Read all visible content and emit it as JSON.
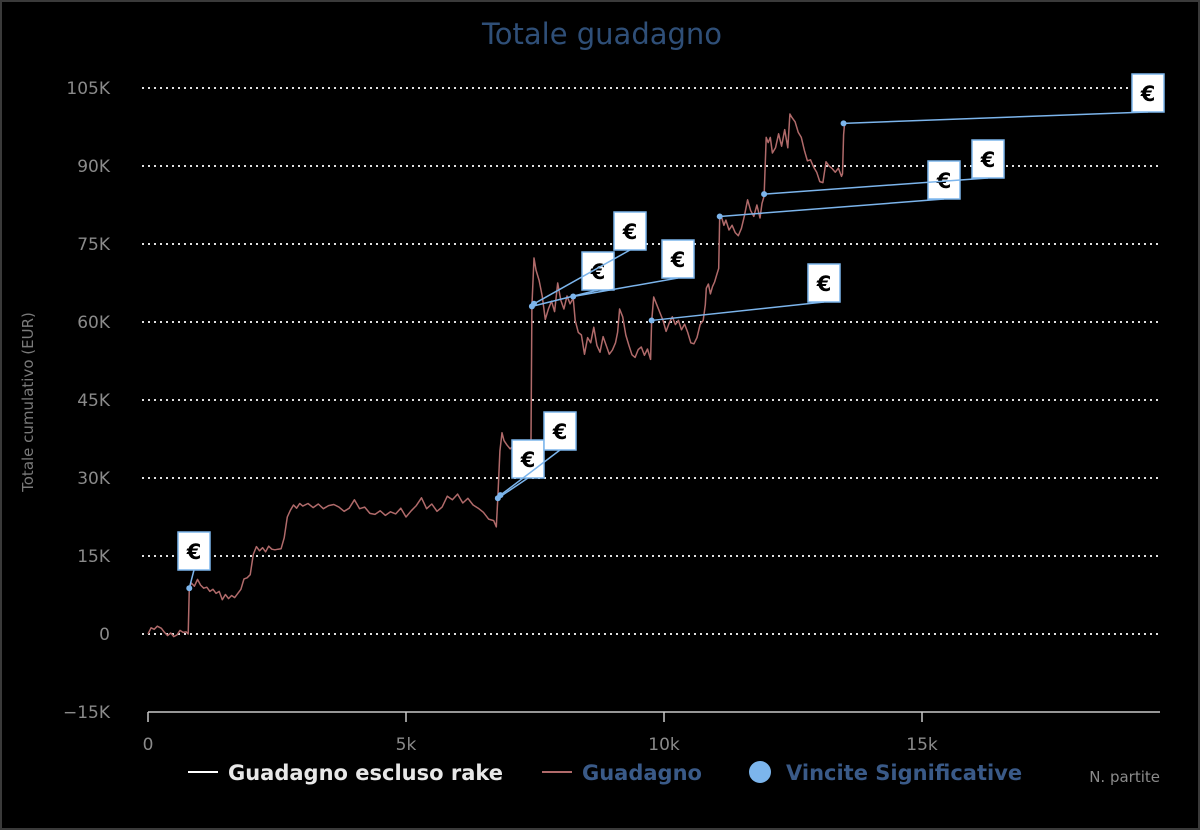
{
  "chart_data": {
    "type": "line",
    "title": "Totale guadagno",
    "ylabel": "Totale cumulativo (EUR)",
    "xlabel": "N. partite",
    "xlim": [
      0,
      19700
    ],
    "ylim": [
      -15000,
      105000
    ],
    "y_ticks": [
      {
        "value": -15000,
        "label": "−15K"
      },
      {
        "value": 0,
        "label": "0"
      },
      {
        "value": 15000,
        "label": "15K"
      },
      {
        "value": 30000,
        "label": "30K"
      },
      {
        "value": 45000,
        "label": "45K"
      },
      {
        "value": 60000,
        "label": "60K"
      },
      {
        "value": 75000,
        "label": "75K"
      },
      {
        "value": 90000,
        "label": "90K"
      },
      {
        "value": 105000,
        "label": "105K"
      }
    ],
    "x_ticks": [
      {
        "value": 0,
        "label": "0"
      },
      {
        "value": 5000,
        "label": "5k"
      },
      {
        "value": 10000,
        "label": "10k"
      },
      {
        "value": 15000,
        "label": "15k"
      }
    ],
    "grid": "horizontal-dotted",
    "legend_position": "bottom",
    "legend": [
      {
        "name": "Guadagno escluso rake",
        "color": "#ffffff",
        "text_color": "#e8e8e8",
        "marker": "line"
      },
      {
        "name": "Guadagno",
        "color": "#b06a6a",
        "text_color": "#3a5a88",
        "marker": "line"
      },
      {
        "name": "Vincite Significative",
        "color": "#7cb5ec",
        "text_color": "#3a5a88",
        "marker": "circle"
      }
    ],
    "series": [
      {
        "name": "Guadagno",
        "color": "#b06a6a",
        "points": [
          [
            0,
            0
          ],
          [
            60,
            1200
          ],
          [
            120,
            900
          ],
          [
            180,
            1500
          ],
          [
            260,
            1100
          ],
          [
            320,
            300
          ],
          [
            380,
            -300
          ],
          [
            440,
            200
          ],
          [
            500,
            -500
          ],
          [
            560,
            -200
          ],
          [
            620,
            700
          ],
          [
            680,
            300
          ],
          [
            740,
            400
          ],
          [
            780,
            0
          ],
          [
            800,
            8800
          ],
          [
            840,
            9800
          ],
          [
            900,
            9200
          ],
          [
            960,
            10500
          ],
          [
            1020,
            9400
          ],
          [
            1080,
            8800
          ],
          [
            1140,
            9000
          ],
          [
            1200,
            8200
          ],
          [
            1260,
            8600
          ],
          [
            1320,
            7800
          ],
          [
            1380,
            8200
          ],
          [
            1440,
            6600
          ],
          [
            1500,
            7600
          ],
          [
            1560,
            6800
          ],
          [
            1620,
            7400
          ],
          [
            1680,
            7000
          ],
          [
            1740,
            7800
          ],
          [
            1800,
            8600
          ],
          [
            1860,
            10600
          ],
          [
            1920,
            10800
          ],
          [
            1980,
            11400
          ],
          [
            2040,
            15300
          ],
          [
            2100,
            16800
          ],
          [
            2160,
            16000
          ],
          [
            2220,
            16600
          ],
          [
            2280,
            15800
          ],
          [
            2340,
            16900
          ],
          [
            2400,
            16300
          ],
          [
            2460,
            16200
          ],
          [
            2520,
            16300
          ],
          [
            2580,
            16400
          ],
          [
            2640,
            18500
          ],
          [
            2700,
            22500
          ],
          [
            2760,
            23800
          ],
          [
            2820,
            24800
          ],
          [
            2880,
            24200
          ],
          [
            2940,
            25100
          ],
          [
            3000,
            24600
          ],
          [
            3100,
            25100
          ],
          [
            3200,
            24300
          ],
          [
            3300,
            25000
          ],
          [
            3400,
            24100
          ],
          [
            3500,
            24700
          ],
          [
            3600,
            24900
          ],
          [
            3700,
            24400
          ],
          [
            3800,
            23600
          ],
          [
            3900,
            24200
          ],
          [
            4000,
            25800
          ],
          [
            4100,
            24100
          ],
          [
            4200,
            24400
          ],
          [
            4300,
            23200
          ],
          [
            4400,
            23000
          ],
          [
            4500,
            23700
          ],
          [
            4600,
            22800
          ],
          [
            4700,
            23500
          ],
          [
            4800,
            23100
          ],
          [
            4900,
            24200
          ],
          [
            5000,
            22500
          ],
          [
            5100,
            23700
          ],
          [
            5200,
            24700
          ],
          [
            5300,
            26200
          ],
          [
            5400,
            24100
          ],
          [
            5500,
            25000
          ],
          [
            5600,
            23600
          ],
          [
            5700,
            24400
          ],
          [
            5800,
            26500
          ],
          [
            5900,
            25800
          ],
          [
            6000,
            26900
          ],
          [
            6100,
            25200
          ],
          [
            6200,
            26100
          ],
          [
            6300,
            24800
          ],
          [
            6400,
            24200
          ],
          [
            6500,
            23400
          ],
          [
            6600,
            22100
          ],
          [
            6700,
            21800
          ],
          [
            6750,
            20600
          ],
          [
            6780,
            26100
          ],
          [
            6820,
            35200
          ],
          [
            6860,
            38700
          ],
          [
            6900,
            37200
          ],
          [
            6960,
            36300
          ],
          [
            7020,
            35600
          ],
          [
            7080,
            36200
          ],
          [
            7140,
            35300
          ],
          [
            7200,
            35800
          ],
          [
            7260,
            34600
          ],
          [
            7320,
            33600
          ],
          [
            7380,
            31100
          ],
          [
            7420,
            34500
          ],
          [
            7440,
            63000
          ],
          [
            7480,
            72300
          ],
          [
            7520,
            70000
          ],
          [
            7580,
            68000
          ],
          [
            7640,
            65000
          ],
          [
            7700,
            60500
          ],
          [
            7760,
            62500
          ],
          [
            7820,
            64000
          ],
          [
            7880,
            62000
          ],
          [
            7940,
            67500
          ],
          [
            8000,
            64200
          ],
          [
            8060,
            62500
          ],
          [
            8120,
            65000
          ],
          [
            8180,
            63500
          ],
          [
            8240,
            64600
          ],
          [
            8280,
            60300
          ],
          [
            8340,
            58000
          ],
          [
            8400,
            57500
          ],
          [
            8460,
            53800
          ],
          [
            8520,
            57000
          ],
          [
            8580,
            56000
          ],
          [
            8640,
            59000
          ],
          [
            8700,
            55500
          ],
          [
            8760,
            54200
          ],
          [
            8820,
            57200
          ],
          [
            8880,
            55500
          ],
          [
            8940,
            53800
          ],
          [
            9000,
            54600
          ],
          [
            9060,
            56000
          ],
          [
            9100,
            58000
          ],
          [
            9140,
            62500
          ],
          [
            9200,
            61000
          ],
          [
            9260,
            57500
          ],
          [
            9320,
            55500
          ],
          [
            9380,
            53700
          ],
          [
            9440,
            53200
          ],
          [
            9500,
            54700
          ],
          [
            9560,
            55200
          ],
          [
            9620,
            53600
          ],
          [
            9680,
            54800
          ],
          [
            9740,
            52800
          ],
          [
            9760,
            60000
          ],
          [
            9800,
            64800
          ],
          [
            9860,
            63300
          ],
          [
            9920,
            61800
          ],
          [
            9980,
            60300
          ],
          [
            10040,
            58200
          ],
          [
            10100,
            59800
          ],
          [
            10160,
            61000
          ],
          [
            10220,
            59500
          ],
          [
            10280,
            60300
          ],
          [
            10340,
            58500
          ],
          [
            10400,
            59600
          ],
          [
            10460,
            58000
          ],
          [
            10520,
            56000
          ],
          [
            10580,
            55800
          ],
          [
            10640,
            57000
          ],
          [
            10700,
            59500
          ],
          [
            10760,
            60300
          ],
          [
            10800,
            63300
          ],
          [
            10820,
            66500
          ],
          [
            10860,
            67300
          ],
          [
            10900,
            65400
          ],
          [
            10940,
            66800
          ],
          [
            10980,
            67700
          ],
          [
            11020,
            69000
          ],
          [
            11060,
            70300
          ],
          [
            11080,
            80300
          ],
          [
            11120,
            80000
          ],
          [
            11160,
            78600
          ],
          [
            11200,
            79600
          ],
          [
            11260,
            77700
          ],
          [
            11320,
            78600
          ],
          [
            11380,
            77200
          ],
          [
            11440,
            76600
          ],
          [
            11500,
            78000
          ],
          [
            11560,
            80500
          ],
          [
            11620,
            83500
          ],
          [
            11680,
            81400
          ],
          [
            11740,
            80300
          ],
          [
            11800,
            82500
          ],
          [
            11860,
            80000
          ],
          [
            11900,
            82800
          ],
          [
            11940,
            84200
          ],
          [
            11980,
            95500
          ],
          [
            12020,
            94500
          ],
          [
            12060,
            95500
          ],
          [
            12100,
            92500
          ],
          [
            12160,
            93500
          ],
          [
            12220,
            96200
          ],
          [
            12280,
            93800
          ],
          [
            12340,
            97000
          ],
          [
            12400,
            93500
          ],
          [
            12440,
            100000
          ],
          [
            12480,
            99300
          ],
          [
            12540,
            98500
          ],
          [
            12600,
            96500
          ],
          [
            12660,
            95500
          ],
          [
            12720,
            93000
          ],
          [
            12780,
            91000
          ],
          [
            12840,
            91200
          ],
          [
            12900,
            89800
          ],
          [
            12960,
            88800
          ],
          [
            13020,
            87000
          ],
          [
            13080,
            86800
          ],
          [
            13140,
            90800
          ],
          [
            13200,
            90000
          ],
          [
            13260,
            89500
          ],
          [
            13320,
            88800
          ],
          [
            13380,
            89600
          ],
          [
            13440,
            88000
          ],
          [
            13460,
            88500
          ],
          [
            13480,
            96000
          ],
          [
            13500,
            98200
          ]
        ]
      }
    ],
    "significant_wins": [
      {
        "label": "€",
        "x": 800,
        "y": 8800
      },
      {
        "label": "€",
        "x": 6780,
        "y": 26100
      },
      {
        "label": "€",
        "x": 6830,
        "y": 26700
      },
      {
        "label": "€",
        "x": 7440,
        "y": 63000
      },
      {
        "label": "€",
        "x": 7480,
        "y": 63500
      },
      {
        "label": "€",
        "x": 8240,
        "y": 64900
      },
      {
        "label": "€",
        "x": 9760,
        "y": 60300
      },
      {
        "label": "€",
        "x": 11080,
        "y": 80300
      },
      {
        "label": "€",
        "x": 11940,
        "y": 84600
      },
      {
        "label": "€",
        "x": 13480,
        "y": 98200
      }
    ]
  }
}
